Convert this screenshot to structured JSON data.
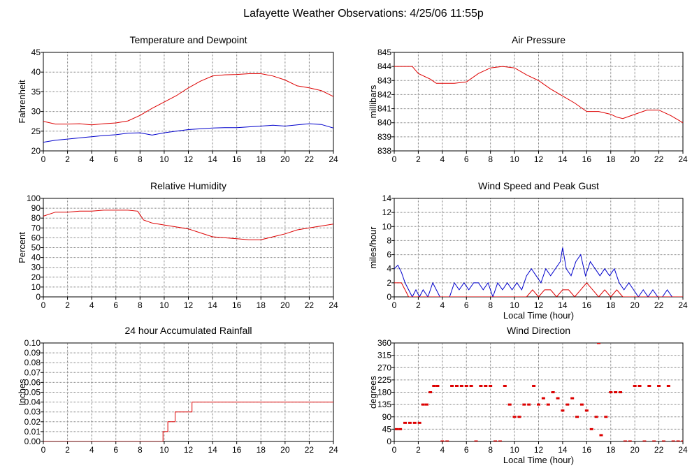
{
  "title": "Lafayette Weather Observations: 4/25/06 11:55p",
  "colors": {
    "red": "#dd0000",
    "blue": "#0000cc",
    "grid": "#808080"
  },
  "chart_data": [
    {
      "type": "line",
      "title": "Temperature and Dewpoint",
      "xlabel": "",
      "ylabel": "Fahrenheit",
      "xlim": [
        0,
        24
      ],
      "ylim": [
        20,
        45
      ],
      "xticks": [
        0,
        2,
        4,
        6,
        8,
        10,
        12,
        14,
        16,
        18,
        20,
        22,
        24
      ],
      "yticks": [
        20,
        25,
        30,
        35,
        40,
        45
      ],
      "grid": true,
      "series": [
        {
          "color": "#dd0000",
          "x": [
            0,
            1,
            2,
            3,
            4,
            5,
            6,
            7,
            8,
            9,
            10,
            11,
            12,
            13,
            14,
            15,
            16,
            17,
            18,
            19,
            20,
            21,
            22,
            23,
            24
          ],
          "y": [
            27.5,
            26.8,
            26.8,
            26.9,
            26.6,
            26.9,
            27.1,
            27.6,
            29.0,
            30.8,
            32.4,
            34.0,
            36.0,
            37.7,
            39.0,
            39.3,
            39.4,
            39.6,
            39.6,
            39.0,
            38.0,
            36.5,
            36.0,
            35.3,
            33.8
          ]
        },
        {
          "color": "#0000cc",
          "x": [
            0,
            1,
            2,
            3,
            4,
            5,
            6,
            7,
            8,
            9,
            10,
            11,
            12,
            13,
            14,
            15,
            16,
            17,
            18,
            19,
            20,
            21,
            22,
            23,
            24
          ],
          "y": [
            22.2,
            22.7,
            23.0,
            23.3,
            23.6,
            23.9,
            24.1,
            24.5,
            24.6,
            24.0,
            24.6,
            25.0,
            25.4,
            25.6,
            25.8,
            25.9,
            25.9,
            26.1,
            26.3,
            26.5,
            26.3,
            26.6,
            26.9,
            26.7,
            25.8
          ]
        }
      ]
    },
    {
      "type": "line",
      "title": "Air Pressure",
      "xlabel": "",
      "ylabel": "millibars",
      "xlim": [
        0,
        24
      ],
      "ylim": [
        838,
        845
      ],
      "xticks": [
        0,
        2,
        4,
        6,
        8,
        10,
        12,
        14,
        16,
        18,
        20,
        22,
        24
      ],
      "yticks": [
        838,
        839,
        840,
        841,
        842,
        843,
        844,
        845
      ],
      "grid": true,
      "series": [
        {
          "color": "#dd0000",
          "x": [
            0,
            1.5,
            2,
            3,
            3.5,
            4,
            5,
            6,
            7,
            8,
            9,
            10,
            11,
            12,
            13,
            14,
            15,
            16,
            17,
            18,
            18.5,
            19,
            20,
            21,
            22,
            23,
            24
          ],
          "y": [
            844.0,
            844.0,
            843.5,
            843.1,
            842.8,
            842.8,
            842.8,
            842.9,
            843.5,
            843.9,
            844.0,
            843.9,
            843.4,
            843.0,
            842.4,
            841.9,
            841.4,
            840.8,
            840.8,
            840.6,
            840.4,
            840.3,
            840.6,
            840.9,
            840.9,
            840.5,
            840.0
          ]
        }
      ]
    },
    {
      "type": "line",
      "title": "Relative Humidity",
      "xlabel": "",
      "ylabel": "Percent",
      "xlim": [
        0,
        24
      ],
      "ylim": [
        0,
        100
      ],
      "xticks": [
        0,
        2,
        4,
        6,
        8,
        10,
        12,
        14,
        16,
        18,
        20,
        22,
        24
      ],
      "yticks": [
        0,
        10,
        20,
        30,
        40,
        50,
        60,
        70,
        80,
        90,
        100
      ],
      "grid": true,
      "series": [
        {
          "color": "#dd0000",
          "x": [
            0,
            1,
            2,
            3,
            4,
            5,
            6,
            7,
            7.8,
            8.3,
            9,
            10,
            11,
            12,
            13,
            14,
            15,
            16,
            17,
            18,
            19,
            20,
            21,
            22,
            23,
            24
          ],
          "y": [
            82,
            86,
            86,
            87,
            87,
            88,
            88,
            88,
            87,
            78,
            75,
            73,
            71,
            69,
            65,
            61,
            60,
            59,
            58,
            58,
            61,
            64,
            68,
            70,
            72,
            74
          ]
        }
      ]
    },
    {
      "type": "line",
      "title": "Wind Speed and Peak Gust",
      "xlabel": "Local Time (hour)",
      "ylabel": "miles/hour",
      "xlim": [
        0,
        24
      ],
      "ylim": [
        0,
        14
      ],
      "xticks": [
        0,
        2,
        4,
        6,
        8,
        10,
        12,
        14,
        16,
        18,
        20,
        22,
        24
      ],
      "yticks": [
        0,
        2,
        4,
        6,
        8,
        10,
        12,
        14
      ],
      "grid": true,
      "series": [
        {
          "color": "#0000cc",
          "x": [
            0,
            0.3,
            0.6,
            0.9,
            1.2,
            1.5,
            1.8,
            2.1,
            2.4,
            2.8,
            3.2,
            3.5,
            3.8,
            4.2,
            4.6,
            5.0,
            5.4,
            5.8,
            6.2,
            6.6,
            7.0,
            7.4,
            7.8,
            8.2,
            8.6,
            9.0,
            9.4,
            9.8,
            10.2,
            10.6,
            11.0,
            11.4,
            11.8,
            12.2,
            12.6,
            13.0,
            13.4,
            13.8,
            14.0,
            14.3,
            14.7,
            15.1,
            15.5,
            15.9,
            16.3,
            16.7,
            17.1,
            17.5,
            17.9,
            18.3,
            18.7,
            19.1,
            19.5,
            19.9,
            20.3,
            20.7,
            21.1,
            21.5,
            21.9,
            22.3,
            22.7,
            23.1,
            23.5,
            24
          ],
          "y": [
            4,
            4.5,
            3.5,
            2,
            1,
            0,
            1,
            0,
            1,
            0,
            2,
            1,
            0,
            0,
            0,
            2,
            1,
            2,
            1,
            2,
            2,
            1,
            2,
            0,
            2,
            1,
            2,
            1,
            2,
            1,
            3,
            4,
            3,
            2,
            4,
            3,
            4,
            5,
            7,
            4,
            3,
            5,
            6,
            3,
            5,
            4,
            3,
            4,
            3,
            4,
            2,
            1,
            2,
            1,
            0,
            1,
            0,
            1,
            0,
            0,
            1,
            0,
            0,
            0
          ]
        },
        {
          "color": "#dd0000",
          "x": [
            0,
            0.3,
            0.6,
            0.9,
            1.2,
            1.5,
            2,
            4,
            6,
            8,
            9,
            10,
            11,
            11.5,
            12,
            12.5,
            13,
            13.5,
            14,
            14.5,
            15,
            15.5,
            16,
            16.5,
            17,
            17.5,
            18,
            18.5,
            19,
            20,
            22,
            24
          ],
          "y": [
            2,
            2,
            2,
            1,
            0,
            0,
            0,
            0,
            0,
            0,
            0,
            0,
            0,
            1,
            0,
            1,
            1,
            0,
            1,
            1,
            0,
            1,
            2,
            1,
            0,
            1,
            0,
            1,
            0,
            0,
            0,
            0
          ]
        }
      ]
    },
    {
      "type": "line",
      "title": "24 hour Accumulated Rainfall",
      "xlabel": "",
      "ylabel": "Inches",
      "xlim": [
        0,
        24
      ],
      "ylim": [
        0,
        0.1
      ],
      "xticks": [
        0,
        2,
        4,
        6,
        8,
        10,
        12,
        14,
        16,
        18,
        20,
        22,
        24
      ],
      "yticks": [
        0.0,
        0.01,
        0.02,
        0.03,
        0.04,
        0.05,
        0.06,
        0.07,
        0.08,
        0.09,
        0.1
      ],
      "ytick_labels": [
        "0.00",
        "0.01",
        "0.02",
        "0.03",
        "0.04",
        "0.05",
        "0.06",
        "0.07",
        "0.08",
        "0.09",
        "0.10"
      ],
      "grid": true,
      "series": [
        {
          "color": "#dd0000",
          "x": [
            0,
            9.9,
            9.9,
            10.3,
            10.3,
            10.9,
            10.9,
            11.6,
            11.6,
            12.3,
            12.3,
            24
          ],
          "y": [
            0,
            0,
            0.01,
            0.01,
            0.02,
            0.02,
            0.03,
            0.03,
            0.03,
            0.03,
            0.04,
            0.04
          ]
        }
      ]
    },
    {
      "type": "scatter",
      "title": "Wind Direction",
      "xlabel": "Local Time (hour)",
      "ylabel": "degrees",
      "xlim": [
        0,
        24
      ],
      "ylim": [
        0,
        360
      ],
      "xticks": [
        0,
        2,
        4,
        6,
        8,
        10,
        12,
        14,
        16,
        18,
        20,
        22,
        24
      ],
      "yticks": [
        0,
        45,
        90,
        135,
        180,
        225,
        270,
        315,
        360
      ],
      "grid": true,
      "series": [
        {
          "color": "#dd0000",
          "x": [
            0.2,
            0.5,
            0.9,
            1.3,
            1.7,
            2.1,
            2.4,
            2.7,
            3.0,
            3.3,
            3.6,
            4.0,
            4.4,
            4.8,
            5.2,
            5.6,
            6.0,
            6.4,
            6.8,
            7.2,
            7.6,
            8.0,
            8.4,
            8.8,
            9.2,
            9.6,
            10.0,
            10.4,
            10.8,
            11.2,
            11.6,
            12.0,
            12.4,
            12.8,
            13.2,
            13.6,
            14.0,
            14.4,
            14.8,
            15.2,
            15.6,
            16.0,
            16.4,
            16.8,
            17.0,
            17.2,
            17.6,
            18.0,
            18.4,
            18.8,
            19.2,
            19.6,
            20.0,
            20.4,
            20.8,
            21.2,
            21.6,
            22.0,
            22.4,
            22.8,
            23.2,
            23.6,
            24.0
          ],
          "y": [
            45,
            45,
            68,
            68,
            68,
            68,
            135,
            135,
            180,
            203,
            203,
            0,
            0,
            203,
            203,
            203,
            203,
            203,
            0,
            203,
            203,
            203,
            0,
            0,
            203,
            135,
            90,
            90,
            135,
            135,
            203,
            135,
            158,
            135,
            180,
            158,
            113,
            135,
            158,
            90,
            135,
            113,
            45,
            90,
            360,
            23,
            90,
            180,
            180,
            180,
            0,
            0,
            203,
            203,
            0,
            203,
            0,
            203,
            0,
            203,
            0,
            0,
            0
          ]
        }
      ]
    }
  ]
}
